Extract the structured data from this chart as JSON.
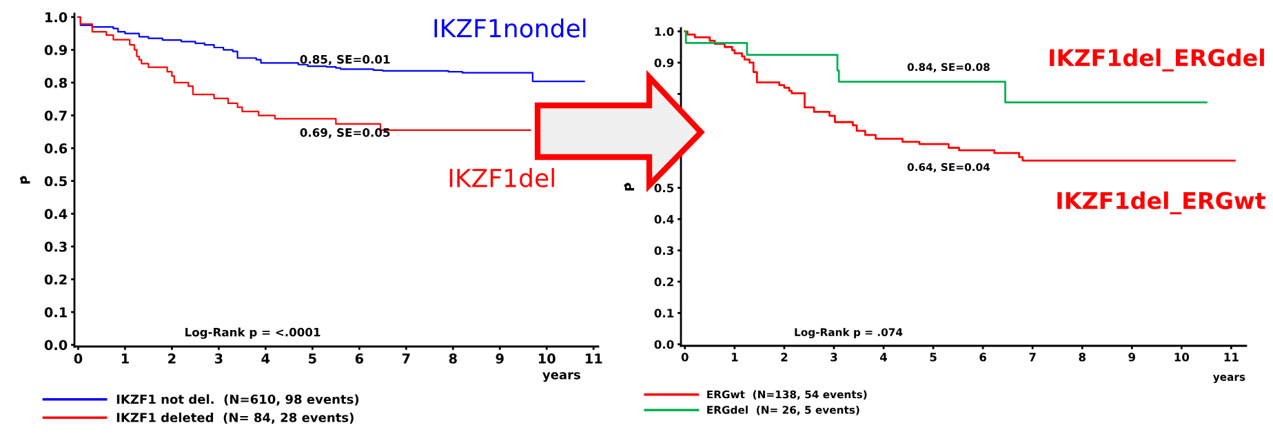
{
  "chart_data": [
    {
      "type": "step",
      "xlabel": "years",
      "ylabel": "P̂",
      "xlim": [
        -0.08,
        11.1
      ],
      "ylim": [
        -0.005,
        1.01
      ],
      "xticks": [
        0,
        1,
        2,
        3,
        4,
        5,
        6,
        7,
        8,
        9,
        10,
        11
      ],
      "yticks": [
        {
          "value": 0,
          "label": "0.0"
        },
        {
          "value": 0.1,
          "label": "0.1"
        },
        {
          "value": 0.2,
          "label": "0.2"
        },
        {
          "value": 0.3,
          "label": "0.3"
        },
        {
          "value": 0.4,
          "label": "0.4"
        },
        {
          "value": 0.5,
          "label": "0.5"
        },
        {
          "value": 0.6,
          "label": "0.6"
        },
        {
          "value": 0.7,
          "label": "0.7"
        },
        {
          "value": 0.8,
          "label": "0.8"
        },
        {
          "value": 0.9,
          "label": "0.9"
        },
        {
          "value": 1.0,
          "label": "1.0"
        }
      ],
      "grid": false,
      "legend": "bottom left",
      "annotations": [
        "IKZF1nondel",
        "IKZF1del",
        "0.85, SE=0.01",
        "0.69, SE=0.05",
        "Log-Rank p = <.0001"
      ],
      "series": [
        {
          "name": "IKZF1 not del.  (N=610, 98 events)",
          "color": "#0000ff",
          "x": [
            0,
            0.05,
            0.3,
            0.75,
            0.85,
            1.0,
            1.3,
            1.5,
            1.8,
            2.2,
            2.5,
            2.7,
            2.9,
            3.1,
            3.3,
            3.4,
            3.8,
            3.9,
            4.7,
            4.9,
            5.3,
            5.5,
            5.6,
            6.3,
            6.5,
            7.9,
            8.2,
            9.7,
            10.8
          ],
          "values": [
            1.0,
            0.975,
            0.97,
            0.965,
            0.955,
            0.95,
            0.94,
            0.935,
            0.93,
            0.925,
            0.92,
            0.915,
            0.907,
            0.9,
            0.895,
            0.875,
            0.87,
            0.86,
            0.855,
            0.85,
            0.848,
            0.845,
            0.841,
            0.838,
            0.836,
            0.833,
            0.83,
            0.804,
            0.804
          ]
        },
        {
          "name": "IKZF1 deleted  (N= 84, 28 events)",
          "color": "#ff0000",
          "x": [
            0,
            0.05,
            0.3,
            0.6,
            0.75,
            1.1,
            1.2,
            1.25,
            1.3,
            1.35,
            1.5,
            1.9,
            2.0,
            2.05,
            2.35,
            2.45,
            2.9,
            3.2,
            3.4,
            3.5,
            3.85,
            4.2,
            5.5,
            6.45,
            9.65
          ],
          "values": [
            1.0,
            0.979,
            0.955,
            0.945,
            0.931,
            0.915,
            0.9,
            0.88,
            0.87,
            0.858,
            0.847,
            0.833,
            0.82,
            0.8,
            0.789,
            0.764,
            0.752,
            0.737,
            0.725,
            0.712,
            0.7,
            0.69,
            0.674,
            0.655,
            0.655
          ]
        }
      ]
    },
    {
      "type": "step",
      "xlabel": "years",
      "ylabel": "P̂",
      "xlim": [
        -0.08,
        11.3
      ],
      "ylim": [
        -0.005,
        1.01
      ],
      "xticks": [
        0,
        1,
        2,
        3,
        4,
        5,
        6,
        7,
        8,
        9,
        10,
        11
      ],
      "yticks": [
        {
          "value": 0,
          "label": "0.0"
        },
        {
          "value": 0.1,
          "label": "0.1"
        },
        {
          "value": 0.2,
          "label": "0.2"
        },
        {
          "value": 0.3,
          "label": "0.3"
        },
        {
          "value": 0.4,
          "label": "0.4"
        },
        {
          "value": 0.5,
          "label": "0.5"
        },
        {
          "value": 0.6,
          "label": null
        },
        {
          "value": 0.7,
          "label": null
        },
        {
          "value": 0.8,
          "label": null
        },
        {
          "value": 0.9,
          "label": "0.9"
        },
        {
          "value": 1.0,
          "label": "1.0"
        }
      ],
      "grid": false,
      "legend": "bottom left",
      "annotations": [
        "IKZF1del_ERGdel",
        "IKZF1del_ERGwt",
        "0.84, SE=0.08",
        "0.64, SE=0.04",
        "Log-Rank p = .074"
      ],
      "series": [
        {
          "name": "ERGwt  (N=138, 54 events)",
          "color": "#ff0000",
          "x": [
            0,
            0.05,
            0.2,
            0.5,
            0.6,
            0.8,
            0.95,
            1.0,
            1.15,
            1.2,
            1.3,
            1.38,
            1.45,
            1.9,
            2.0,
            2.1,
            2.15,
            2.41,
            2.6,
            2.91,
            3.02,
            3.38,
            3.46,
            3.63,
            3.84,
            4.38,
            4.72,
            5.31,
            5.52,
            6.23,
            6.73,
            6.8,
            11.07
          ],
          "values": [
            1.0,
            0.99,
            0.981,
            0.97,
            0.96,
            0.95,
            0.94,
            0.93,
            0.92,
            0.91,
            0.9,
            0.87,
            0.837,
            0.828,
            0.82,
            0.81,
            0.802,
            0.757,
            0.743,
            0.73,
            0.71,
            0.7,
            0.682,
            0.669,
            0.657,
            0.647,
            0.64,
            0.628,
            0.62,
            0.611,
            0.598,
            0.587,
            0.587
          ]
        },
        {
          "name": "ERGdel  (N= 26, 5 events)",
          "color": "#00b050",
          "x": [
            0,
            0.02,
            1.25,
            3.07,
            3.1,
            6.45,
            10.5
          ],
          "values": [
            1.0,
            0.963,
            0.925,
            0.875,
            0.839,
            0.773,
            0.773
          ]
        }
      ]
    }
  ]
}
